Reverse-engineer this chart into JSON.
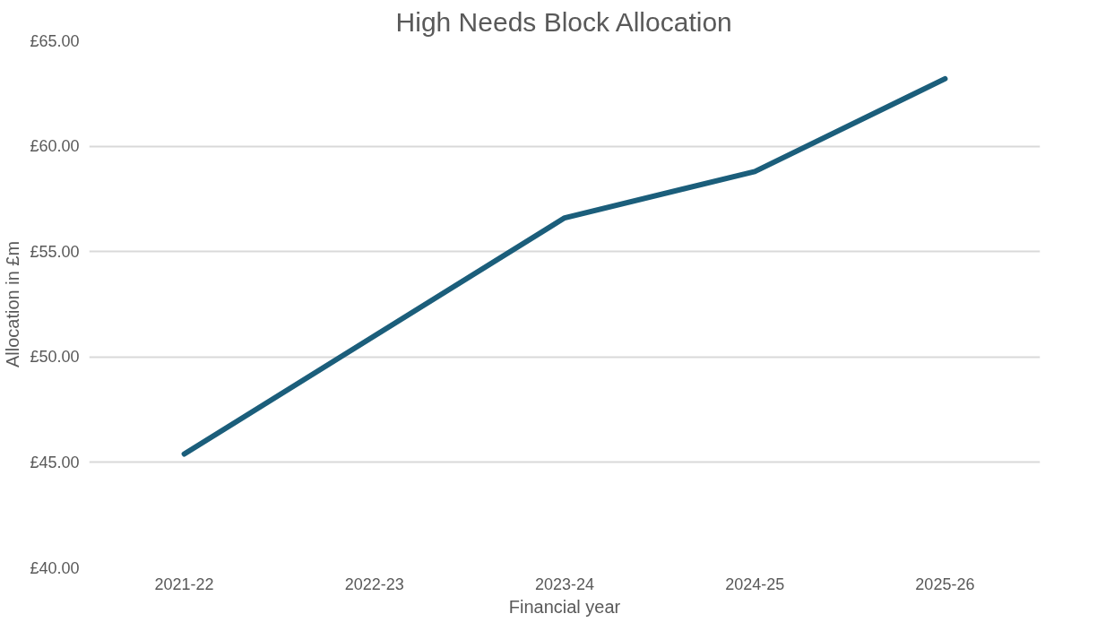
{
  "chart_data": {
    "type": "line",
    "title": "High Needs Block Allocation",
    "xlabel": "Financial year",
    "ylabel": "Allocation in £m",
    "categories": [
      "2021-22",
      "2022-23",
      "2023-24",
      "2024-25",
      "2025-26"
    ],
    "series": [
      {
        "color": "#1b5e7b",
        "values": [
          45.4,
          51.0,
          56.6,
          58.8,
          63.2
        ]
      }
    ],
    "ylim": [
      40,
      65
    ],
    "yticks": [
      {
        "value": 40,
        "label": "£40.00"
      },
      {
        "value": 45,
        "label": "£45.00"
      },
      {
        "value": 50,
        "label": "£50.00"
      },
      {
        "value": 55,
        "label": "£55.00"
      },
      {
        "value": 60,
        "label": "£60.00"
      },
      {
        "value": 65,
        "label": "£65.00"
      }
    ],
    "grid": "y",
    "marker": "none",
    "line_style": "solid"
  }
}
